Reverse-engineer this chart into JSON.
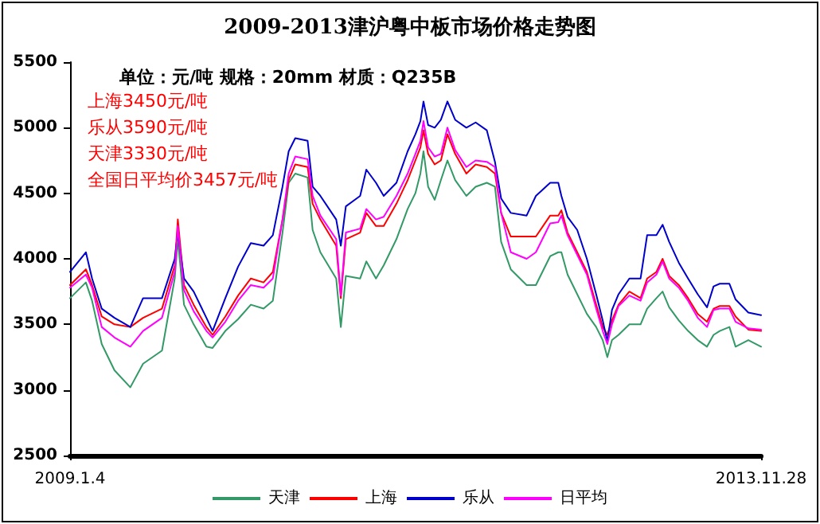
{
  "chart_data": {
    "type": "line",
    "title": "2009-2013津沪粤中板市场价格走势图",
    "annotations": [
      "单位：元/吨 规格：20mm 材质：Q235B",
      "上海3450元/吨",
      "乐从3590元/吨",
      "天津3330元/吨",
      "全国日平均价3457元/吨"
    ],
    "x": [
      "2009-01-04",
      "2009-02-14",
      "2009-03-02",
      "2009-03-27",
      "2009-04-29",
      "2009-06-09",
      "2009-07-12",
      "2009-08-30",
      "2009-10-02",
      "2009-10-10",
      "2009-10-26",
      "2009-11-20",
      "2009-12-23",
      "2010-01-08",
      "2010-02-10",
      "2010-03-15",
      "2010-04-17",
      "2010-05-20",
      "2010-06-13",
      "2010-07-08",
      "2010-07-24",
      "2010-08-10",
      "2010-09-11",
      "2010-09-24",
      "2010-10-14",
      "2010-11-24",
      "2010-12-06",
      "2010-12-19",
      "2011-01-25",
      "2011-02-10",
      "2011-03-07",
      "2011-03-27",
      "2011-04-29",
      "2011-05-28",
      "2011-06-17",
      "2011-06-30",
      "2011-07-08",
      "2011-07-20",
      "2011-08-06",
      "2011-08-22",
      "2011-09-08",
      "2011-09-28",
      "2011-10-27",
      "2011-11-20",
      "2011-12-19",
      "2012-01-09",
      "2012-01-25",
      "2012-02-19",
      "2012-03-31",
      "2012-04-24",
      "2012-05-31",
      "2012-06-21",
      "2012-06-29",
      "2012-07-15",
      "2012-08-09",
      "2012-09-03",
      "2012-09-27",
      "2012-10-14",
      "2012-10-26",
      "2012-11-07",
      "2012-11-24",
      "2012-12-22",
      "2013-01-20",
      "2013-02-06",
      "2013-03-02",
      "2013-03-18",
      "2013-04-04",
      "2013-04-29",
      "2013-05-23",
      "2013-06-17",
      "2013-07-11",
      "2013-07-28",
      "2013-08-13",
      "2013-09-07",
      "2013-09-23",
      "2013-10-26",
      "2013-11-28"
    ],
    "series": [
      {
        "name": "天津",
        "color": "#339966",
        "values": [
          3700,
          3820,
          3680,
          3350,
          3150,
          3020,
          3200,
          3300,
          3850,
          4150,
          3650,
          3500,
          3330,
          3320,
          3450,
          3540,
          3650,
          3620,
          3680,
          4200,
          4580,
          4650,
          4620,
          4220,
          4050,
          3850,
          3480,
          3870,
          3850,
          3980,
          3850,
          3950,
          4150,
          4380,
          4500,
          4650,
          4820,
          4550,
          4450,
          4600,
          4750,
          4600,
          4480,
          4550,
          4580,
          4550,
          4130,
          3920,
          3800,
          3800,
          4020,
          4050,
          4050,
          3880,
          3730,
          3580,
          3480,
          3380,
          3250,
          3380,
          3420,
          3500,
          3500,
          3620,
          3700,
          3750,
          3630,
          3530,
          3450,
          3380,
          3330,
          3420,
          3450,
          3480,
          3330,
          3380,
          3330
        ]
      },
      {
        "name": "上海",
        "color": "#ff0000",
        "values": [
          3800,
          3920,
          3800,
          3560,
          3500,
          3480,
          3550,
          3620,
          3950,
          4300,
          3800,
          3650,
          3480,
          3420,
          3560,
          3720,
          3850,
          3820,
          3900,
          4300,
          4600,
          4720,
          4700,
          4420,
          4300,
          4100,
          3700,
          4150,
          4200,
          4350,
          4250,
          4250,
          4420,
          4600,
          4750,
          4850,
          4980,
          4800,
          4720,
          4750,
          4950,
          4800,
          4650,
          4720,
          4700,
          4650,
          4350,
          4170,
          4170,
          4170,
          4330,
          4330,
          4370,
          4200,
          4050,
          3900,
          3650,
          3480,
          3420,
          3530,
          3650,
          3750,
          3700,
          3850,
          3900,
          4000,
          3870,
          3800,
          3700,
          3580,
          3520,
          3620,
          3640,
          3640,
          3560,
          3460,
          3450
        ]
      },
      {
        "name": "乐从",
        "color": "#0000cc",
        "values": [
          3900,
          4050,
          3850,
          3620,
          3550,
          3480,
          3700,
          3700,
          4000,
          4200,
          3850,
          3750,
          3550,
          3450,
          3700,
          3940,
          4120,
          4100,
          4180,
          4550,
          4820,
          4920,
          4900,
          4550,
          4480,
          4300,
          4100,
          4400,
          4480,
          4680,
          4580,
          4480,
          4580,
          4820,
          4950,
          5050,
          5200,
          5020,
          5000,
          5060,
          5200,
          5060,
          5000,
          5040,
          4980,
          4740,
          4460,
          4350,
          4330,
          4480,
          4580,
          4580,
          4480,
          4320,
          4220,
          4000,
          3730,
          3530,
          3370,
          3610,
          3730,
          3850,
          3850,
          4180,
          4180,
          4260,
          4130,
          3970,
          3850,
          3730,
          3630,
          3790,
          3810,
          3810,
          3690,
          3590,
          3570
        ]
      },
      {
        "name": "日平均",
        "color": "#ff00ff",
        "values": [
          3780,
          3880,
          3780,
          3480,
          3400,
          3330,
          3450,
          3550,
          3900,
          4250,
          3760,
          3600,
          3450,
          3400,
          3520,
          3680,
          3800,
          3780,
          3850,
          4300,
          4650,
          4780,
          4760,
          4480,
          4330,
          4150,
          3720,
          4200,
          4230,
          4380,
          4300,
          4320,
          4480,
          4650,
          4800,
          4900,
          5050,
          4850,
          4780,
          4800,
          5000,
          4830,
          4700,
          4750,
          4740,
          4700,
          4350,
          4050,
          4000,
          4050,
          4270,
          4280,
          4330,
          4180,
          4030,
          3880,
          3620,
          3450,
          3350,
          3500,
          3640,
          3720,
          3680,
          3820,
          3880,
          3980,
          3850,
          3780,
          3680,
          3550,
          3480,
          3610,
          3620,
          3620,
          3520,
          3470,
          3460
        ]
      }
    ],
    "xlim": [
      "2009-01-04",
      "2013-11-28"
    ],
    "xticks": [
      {
        "value": "2009-01-04",
        "label": "2009.1.4"
      },
      {
        "value": "2013-11-28",
        "label": "2013.11.28"
      }
    ],
    "ylim": [
      2500,
      5500
    ],
    "yticks": [
      2500,
      3000,
      3500,
      4000,
      4500,
      5000,
      5500
    ],
    "grid": false,
    "legend": "bottom",
    "marker": "none",
    "line_style": "solid"
  }
}
